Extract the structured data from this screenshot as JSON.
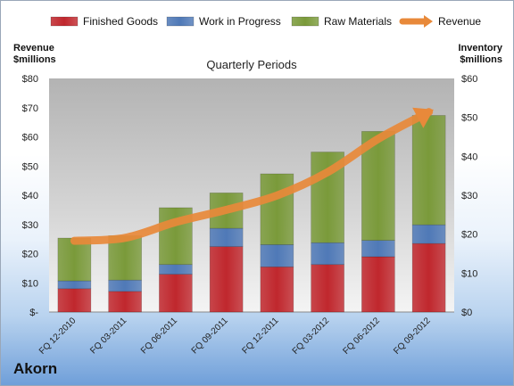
{
  "company": "Akorn",
  "chart_data": {
    "type": "bar",
    "title": "Quarterly Periods",
    "categories": [
      "FQ 12-2010",
      "FQ 03-2011",
      "FQ 06-2011",
      "FQ 09-2011",
      "FQ 12-2011",
      "FQ 03-2012",
      "FQ 06-2012",
      "FQ 09-2012"
    ],
    "series": [
      {
        "name": "Finished Goods",
        "axis": "right",
        "color": "#c0272d",
        "values": [
          6.0,
          5.3,
          9.7,
          16.8,
          11.6,
          12.2,
          14.2,
          17.6
        ]
      },
      {
        "name": "Work in Progress",
        "axis": "right",
        "color": "#4f79b7",
        "values": [
          2.0,
          2.9,
          2.5,
          4.7,
          5.7,
          5.6,
          4.2,
          4.8
        ]
      },
      {
        "name": "Raw Materials",
        "axis": "right",
        "color": "#7a9a3a",
        "values": [
          11.0,
          11.4,
          14.6,
          9.1,
          18.2,
          23.3,
          28.0,
          28.1
        ]
      },
      {
        "name": "Revenue",
        "axis": "left",
        "type": "line",
        "color": "#e8893a",
        "values": [
          24.4,
          25.4,
          30.8,
          35.0,
          39.9,
          47.9,
          59.3,
          68.5
        ]
      }
    ],
    "ylabel_left": "Revenue\n$millions",
    "ylabel_right": "Inventory\n$millions",
    "ylim_left": [
      0,
      80
    ],
    "ylim_right": [
      0,
      60
    ],
    "yticks_left": [
      "$-",
      "$10",
      "$20",
      "$30",
      "$40",
      "$50",
      "$60",
      "$70",
      "$80"
    ],
    "yticks_right": [
      "$0",
      "$10",
      "$20",
      "$30",
      "$40",
      "$50",
      "$60"
    ],
    "grid": false,
    "legend": "top"
  }
}
